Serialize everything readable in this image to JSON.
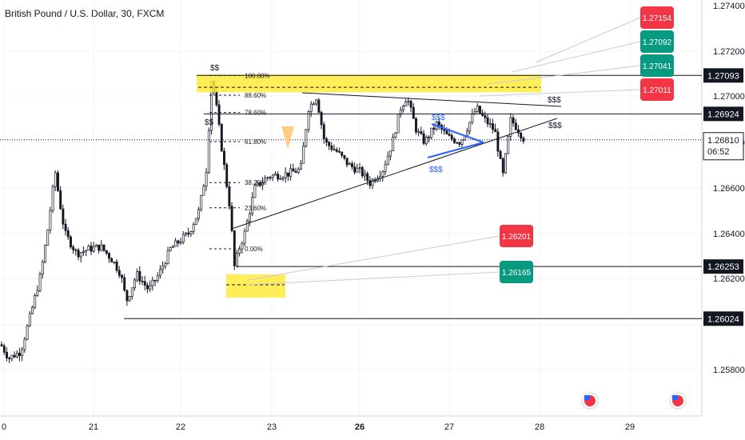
{
  "chart_title": "British Pound / U.S. Dollar, 30, FXCM",
  "chart_data": {
    "type": "candlestick",
    "symbol": "British Pound / U.S. Dollar",
    "interval": "30",
    "source": "FXCM",
    "y_axis_ticks": [
      "1.27400",
      "1.27200",
      "1.27000",
      "1.26800",
      "1.26600",
      "1.26400",
      "1.26200",
      "1.25800"
    ],
    "x_axis_ticks": [
      {
        "label": "0",
        "bold": false
      },
      {
        "label": "21",
        "bold": false
      },
      {
        "label": "22",
        "bold": false
      },
      {
        "label": "23",
        "bold": false
      },
      {
        "label": "26",
        "bold": true
      },
      {
        "label": "27",
        "bold": false
      },
      {
        "label": "28",
        "bold": false
      },
      {
        "label": "29",
        "bold": false
      }
    ],
    "current_price": {
      "value": "1.26810",
      "countdown": "06:52"
    },
    "price_lines": [
      {
        "value": "1.27093",
        "price": 1.27093
      },
      {
        "value": "1.26924",
        "price": 1.26924
      },
      {
        "value": "1.26253",
        "price": 1.26253
      },
      {
        "value": "1.26024",
        "price": 1.26024
      }
    ],
    "target_labels": [
      {
        "value": "1.27154",
        "color": "#f23645"
      },
      {
        "value": "1.27092",
        "color": "#089981"
      },
      {
        "value": "1.27041",
        "color": "#089981"
      },
      {
        "value": "1.27011",
        "color": "#f23645"
      },
      {
        "value": "1.26201",
        "color": "#f23645"
      },
      {
        "value": "1.26165",
        "color": "#089981"
      }
    ],
    "fib_levels": [
      {
        "label": "100.00%",
        "price": 1.27093
      },
      {
        "label": "88.60%",
        "price": 1.27006
      },
      {
        "label": "78.60%",
        "price": 1.2693
      },
      {
        "label": "61.80%",
        "price": 1.26802
      },
      {
        "label": "38.20%",
        "price": 1.26622
      },
      {
        "label": "23.60%",
        "price": 1.26511
      },
      {
        "label": "0.00%",
        "price": 1.26331
      }
    ],
    "annotations": [
      "$$",
      "$$",
      "$$$",
      "$$$",
      "$$$",
      "$$$"
    ],
    "colors": {
      "up": "#ffffff",
      "down": "#131722",
      "zone": "#ffeb3b",
      "pattern": "#2962ff",
      "bull": "#089981",
      "bear": "#f23645"
    }
  }
}
